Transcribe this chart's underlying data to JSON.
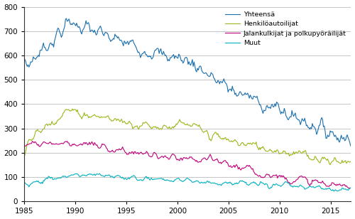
{
  "xlim": [
    1985.0,
    2017.0
  ],
  "ylim": [
    0,
    800
  ],
  "yticks": [
    0,
    100,
    200,
    300,
    400,
    500,
    600,
    700,
    800
  ],
  "xticks": [
    1985,
    1990,
    1995,
    2000,
    2005,
    2010,
    2015
  ],
  "line_colors": {
    "total": "#1a6faf",
    "henk": "#9ab819",
    "jalan": "#c0007a",
    "muut": "#00b0c0"
  },
  "legend_labels": [
    "Yhteensä",
    "Henkilöautoilijat",
    "Jalankulkijat ja polkupyöräilijät",
    "Muut"
  ],
  "background_color": "#ffffff",
  "grid_color": "#bbbbbb",
  "linewidth": 0.8
}
